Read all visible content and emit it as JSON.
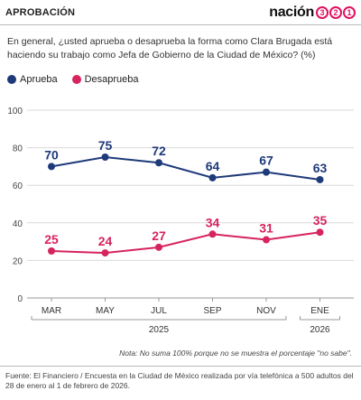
{
  "header": {
    "section_label": "APROBACIÓN",
    "logo_word": "nación",
    "logo_digits": [
      "3",
      "2",
      "1"
    ]
  },
  "question": "En general, ¿usted aprueba o desaprueba la forma como Clara Brugada está haciendo su trabajo como Jefa de Gobierno de la Ciudad de México?  (%)",
  "colors": {
    "aprueba": "#1f3a7a",
    "desaprueba": "#d6245d",
    "grid": "#d9d9d9",
    "axis": "#555555"
  },
  "chart_data": {
    "type": "line",
    "categories": [
      "MAR",
      "MAY",
      "JUL",
      "SEP",
      "NOV",
      "ENE"
    ],
    "year_groups": [
      {
        "label": "2025",
        "start": 0,
        "end": 4
      },
      {
        "label": "2026",
        "start": 5,
        "end": 5
      }
    ],
    "series": [
      {
        "name": "Aprueba",
        "values": [
          70,
          75,
          72,
          64,
          67,
          63
        ]
      },
      {
        "name": "Desaprueba",
        "values": [
          25,
          24,
          27,
          34,
          31,
          35
        ]
      }
    ],
    "yticks": [
      0,
      20,
      40,
      60,
      80,
      100
    ],
    "ylim": [
      0,
      100
    ],
    "grid": true,
    "legend_position": "top-left"
  },
  "note": "Nota: No suma 100% porque no se muestra el porcentaje \"no sabe\".",
  "source": "Fuente: El Financiero /  Encuesta en la Ciudad de México realizada por vía telefónica a 500 adultos del 28 de enero al 1 de febrero de 2026."
}
